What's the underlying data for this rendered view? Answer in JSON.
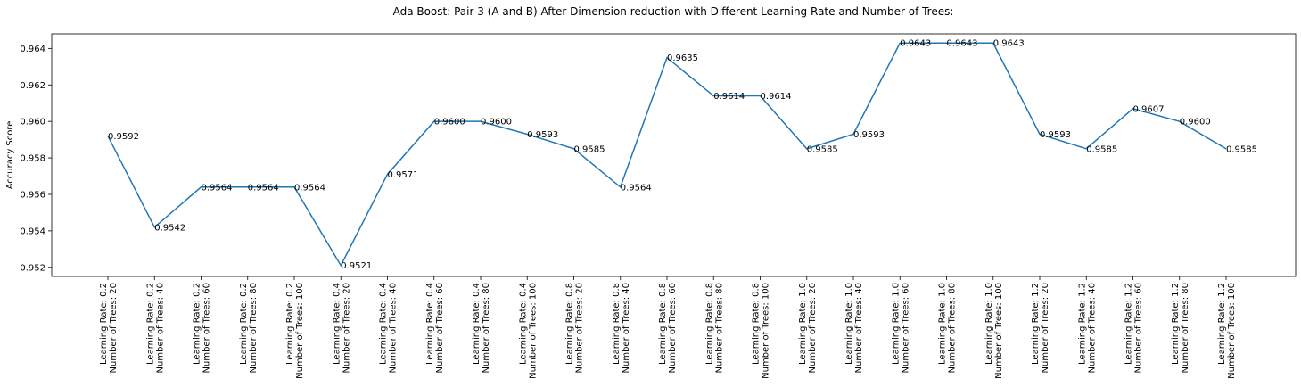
{
  "chart_data": {
    "type": "line",
    "title": "Ada Boost: Pair 3 (A and B) After Dimension reduction with Different Learning Rate and Number of Trees:",
    "ylabel": "Accuracy Score",
    "xlabel": "",
    "ylim": [
      0.9515,
      0.9648
    ],
    "yticks": [
      0.952,
      0.954,
      0.956,
      0.958,
      0.96,
      0.962,
      0.964
    ],
    "ytick_labels": [
      "0.952",
      "0.954",
      "0.956",
      "0.958",
      "0.960",
      "0.962",
      "0.964"
    ],
    "grid": false,
    "line_color": "#1f77b4",
    "categories": [
      [
        "Learning Rate: 0.2",
        "Number of Trees: 20"
      ],
      [
        "Learning Rate: 0.2",
        "Number of Trees: 40"
      ],
      [
        "Learning Rate: 0.2",
        "Number of Trees: 60"
      ],
      [
        "Learning Rate: 0.2",
        "Number of Trees: 80"
      ],
      [
        "Learning Rate: 0.2",
        "Number of Trees: 100"
      ],
      [
        "Learning Rate: 0.4",
        "Number of Trees: 20"
      ],
      [
        "Learning Rate: 0.4",
        "Number of Trees: 40"
      ],
      [
        "Learning Rate: 0.4",
        "Number of Trees: 60"
      ],
      [
        "Learning Rate: 0.4",
        "Number of Trees: 80"
      ],
      [
        "Learning Rate: 0.4",
        "Number of Trees: 100"
      ],
      [
        "Learning Rate: 0.8",
        "Number of Trees: 20"
      ],
      [
        "Learning Rate: 0.8",
        "Number of Trees: 40"
      ],
      [
        "Learning Rate: 0.8",
        "Number of Trees: 60"
      ],
      [
        "Learning Rate: 0.8",
        "Number of Trees: 80"
      ],
      [
        "Learning Rate: 0.8",
        "Number of Trees: 100"
      ],
      [
        "Learning Rate: 1.0",
        "Number of Trees: 20"
      ],
      [
        "Learning Rate: 1.0",
        "Number of Trees: 40"
      ],
      [
        "Learning Rate: 1.0",
        "Number of Trees: 60"
      ],
      [
        "Learning Rate: 1.0",
        "Number of Trees: 80"
      ],
      [
        "Learning Rate: 1.0",
        "Number of Trees: 100"
      ],
      [
        "Learning Rate: 1.2",
        "Number of Trees: 20"
      ],
      [
        "Learning Rate: 1.2",
        "Number of Trees: 40"
      ],
      [
        "Learning Rate: 1.2",
        "Number of Trees: 60"
      ],
      [
        "Learning Rate: 1.2",
        "Number of Trees: 80"
      ],
      [
        "Learning Rate: 1.2",
        "Number of Trees: 100"
      ]
    ],
    "values": [
      0.9592,
      0.9542,
      0.9564,
      0.9564,
      0.9564,
      0.9521,
      0.9571,
      0.96,
      0.96,
      0.9593,
      0.9585,
      0.9564,
      0.9635,
      0.9614,
      0.9614,
      0.9585,
      0.9593,
      0.9643,
      0.9643,
      0.9643,
      0.9593,
      0.9585,
      0.9607,
      0.96,
      0.9585
    ],
    "data_labels": [
      "0.9592",
      "0.9542",
      "0.9564",
      "0.9564",
      "0.9564",
      "0.9521",
      "0.9571",
      "0.9600",
      "0.9600",
      "0.9593",
      "0.9585",
      "0.9564",
      "0.9635",
      "0.9614",
      "0.9614",
      "0.9585",
      "0.9593",
      "0.9643",
      "0.9643",
      "0.9643",
      "0.9593",
      "0.9585",
      "0.9607",
      "0.9600",
      "0.9585"
    ]
  }
}
